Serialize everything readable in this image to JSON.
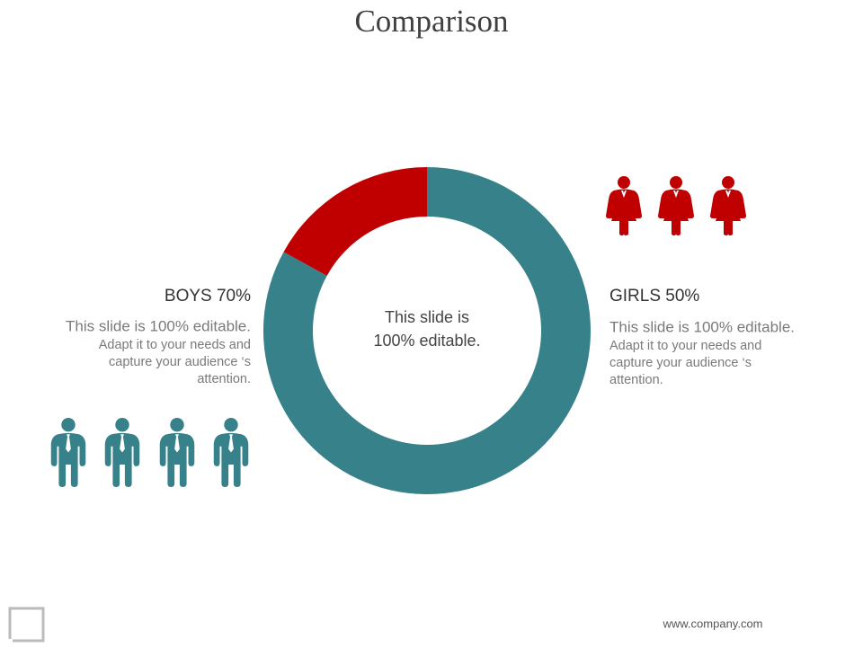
{
  "title": "Comparison",
  "chart_data": {
    "type": "donut",
    "values": [
      83,
      17
    ],
    "colors": [
      "#36818a",
      "#c00000"
    ]
  },
  "center_text": [
    "This slide is",
    "100% editable."
  ],
  "boys": {
    "heading": "BOYS 70%",
    "lead": "This slide is 100% editable.",
    "body": [
      "Adapt it to your needs and",
      "capture your  audience ‘s",
      "attention."
    ]
  },
  "girls": {
    "heading": "GIRLS 50%",
    "lead": "This slide is 100% editable.",
    "body": [
      "Adapt it to your needs and",
      "capture your  audience ‘s",
      "attention."
    ]
  },
  "footer": "www.company.com"
}
